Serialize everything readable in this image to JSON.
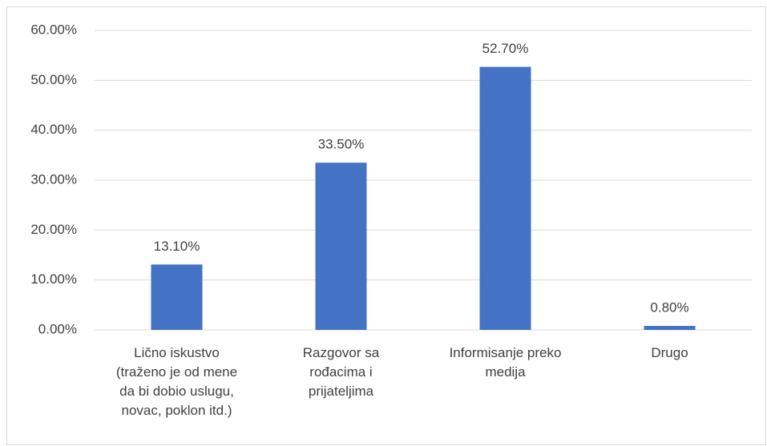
{
  "chart_data": {
    "type": "bar",
    "categories": [
      "Lično iskustvo (traženo je od mene da bi dobio uslugu, novac, poklon itd.)",
      "Razgovor sa rođacima i prijateljima",
      "Informisanje preko medija",
      "Drugo"
    ],
    "values": [
      13.1,
      33.5,
      52.7,
      0.8
    ],
    "value_labels": [
      "13.10%",
      "33.50%",
      "52.70%",
      "0.80%"
    ],
    "color": "#4472c4",
    "ylim": [
      0,
      60
    ],
    "yticks": [
      {
        "value": 0,
        "label": "0.00%"
      },
      {
        "value": 10,
        "label": "10.00%"
      },
      {
        "value": 20,
        "label": "20.00%"
      },
      {
        "value": 30,
        "label": "30.00%"
      },
      {
        "value": 40,
        "label": "40.00%"
      },
      {
        "value": 50,
        "label": "50.00%"
      },
      {
        "value": 60,
        "label": "60.00%"
      }
    ],
    "grid": true
  }
}
